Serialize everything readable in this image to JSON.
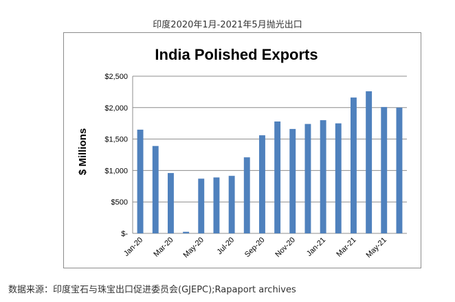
{
  "header": {
    "caption": "印度2020年1月-2021年5月抛光出口"
  },
  "footer": {
    "source": "数据来源：印度宝石与珠宝出口促进委员会(GJEPC);Rapaport archives"
  },
  "colors": {
    "bar": "#4f81bd",
    "grid": "#8c8c8c"
  },
  "chart_data": {
    "type": "bar",
    "title": "India Polished Exports",
    "xlabel": "",
    "ylabel": "$ Millions",
    "categories": [
      "Jan-20",
      "Feb-20",
      "Mar-20",
      "Apr-20",
      "May-20",
      "Jun-20",
      "Jul-20",
      "Aug-20",
      "Sep-20",
      "Oct-20",
      "Nov-20",
      "Dec-20",
      "Jan-21",
      "Feb-21",
      "Mar-21",
      "Apr-21",
      "May-21",
      "Jun-21"
    ],
    "category_labels_shown": [
      "Jan-20",
      "",
      "Mar-20",
      "",
      "May-20",
      "",
      "Jul-20",
      "",
      "Sep-20",
      "",
      "Nov-20",
      "",
      "Jan-21",
      "",
      "Mar-21",
      "",
      "May-21",
      ""
    ],
    "values": [
      1650,
      1390,
      960,
      25,
      870,
      890,
      915,
      1210,
      1560,
      1780,
      1660,
      1740,
      1800,
      1750,
      2160,
      2260,
      2010,
      2000
    ],
    "ylim": [
      0,
      2500
    ],
    "yticks": [
      0,
      500,
      1000,
      1500,
      2000,
      2500
    ],
    "ytick_labels": [
      "$-",
      "$500",
      "$1,000",
      "$1,500",
      "$2,000",
      "$2,500"
    ],
    "grid": true,
    "legend": "none"
  }
}
